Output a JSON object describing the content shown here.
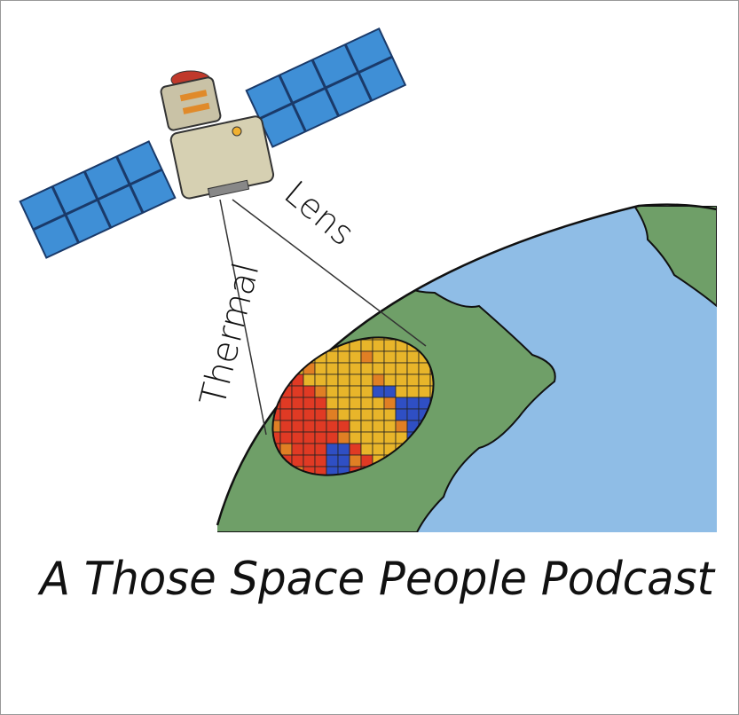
{
  "illustration": {
    "labels": {
      "thermal": "Thermal",
      "lens": "Lens"
    },
    "caption": "A Those Space People Podcast"
  }
}
